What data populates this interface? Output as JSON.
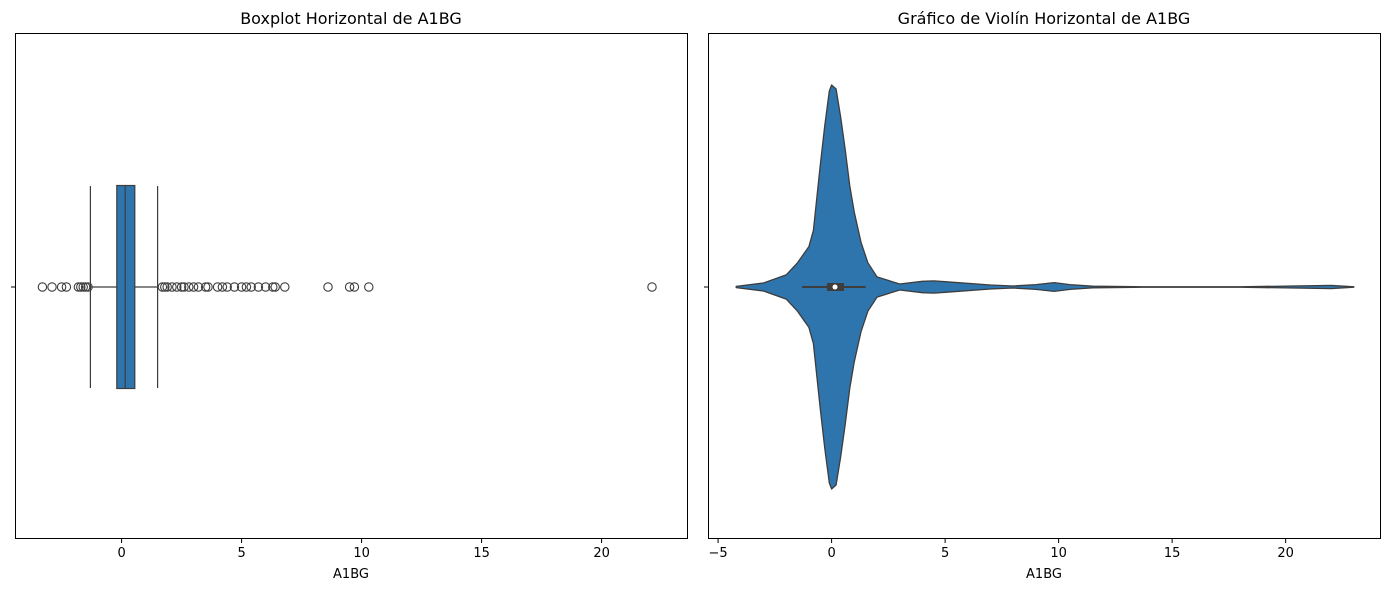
{
  "chart_data": [
    {
      "type": "boxplot",
      "orientation": "horizontal",
      "title": "Boxplot Horizontal de A1BG",
      "xlabel": "A1BG",
      "xlim": [
        -4.4,
        23.6
      ],
      "x_ticks": [
        0,
        5,
        10,
        15,
        20
      ],
      "x_tick_labels": [
        "0",
        "5",
        "10",
        "15",
        "20"
      ],
      "y_tick_labels": [
        ""
      ],
      "color": "#2f75ad",
      "q1": -0.2,
      "median": 0.15,
      "q3": 0.55,
      "whisker_low": -1.3,
      "whisker_high": 1.5,
      "outliers": [
        -3.3,
        -2.9,
        -2.5,
        -2.3,
        -1.8,
        -1.7,
        -1.6,
        -1.5,
        -1.4,
        1.7,
        1.8,
        1.9,
        2.1,
        2.3,
        2.5,
        2.6,
        2.8,
        3.0,
        3.2,
        3.5,
        3.6,
        4.0,
        4.2,
        4.4,
        4.7,
        5.0,
        5.2,
        5.4,
        5.7,
        6.0,
        6.3,
        6.4,
        6.8,
        8.6,
        9.5,
        9.7,
        10.3,
        22.1
      ]
    },
    {
      "type": "violin",
      "orientation": "horizontal",
      "title": "Gráfico de Violín Horizontal de A1BG",
      "xlabel": "A1BG",
      "xlim": [
        -5.4,
        24.2
      ],
      "x_ticks": [
        -5,
        0,
        5,
        10,
        15,
        20
      ],
      "x_tick_labels": [
        "−5",
        "0",
        "5",
        "10",
        "15",
        "20"
      ],
      "y_tick_labels": [
        ""
      ],
      "color": "#2f75ad",
      "density": {
        "x": [
          -4.2,
          -3,
          -2,
          -1.5,
          -1,
          -0.8,
          -0.5,
          -0.3,
          -0.1,
          0,
          0.2,
          0.4,
          0.6,
          0.8,
          1,
          1.3,
          1.6,
          2,
          3,
          4,
          4.5,
          5,
          7,
          8,
          9,
          9.8,
          10.5,
          11.5,
          14,
          18,
          22,
          23
        ],
        "half_width": [
          0.003,
          0.02,
          0.06,
          0.12,
          0.2,
          0.28,
          0.6,
          0.8,
          0.97,
          1.0,
          0.98,
          0.84,
          0.68,
          0.5,
          0.37,
          0.22,
          0.12,
          0.05,
          0.015,
          0.028,
          0.03,
          0.026,
          0.01,
          0.005,
          0.012,
          0.022,
          0.012,
          0.004,
          0.001,
          0.001,
          0.008,
          0.001
        ]
      },
      "q1": -0.2,
      "median": 0.15,
      "q3": 0.55,
      "whisker_low": -1.3,
      "whisker_high": 1.5
    }
  ]
}
